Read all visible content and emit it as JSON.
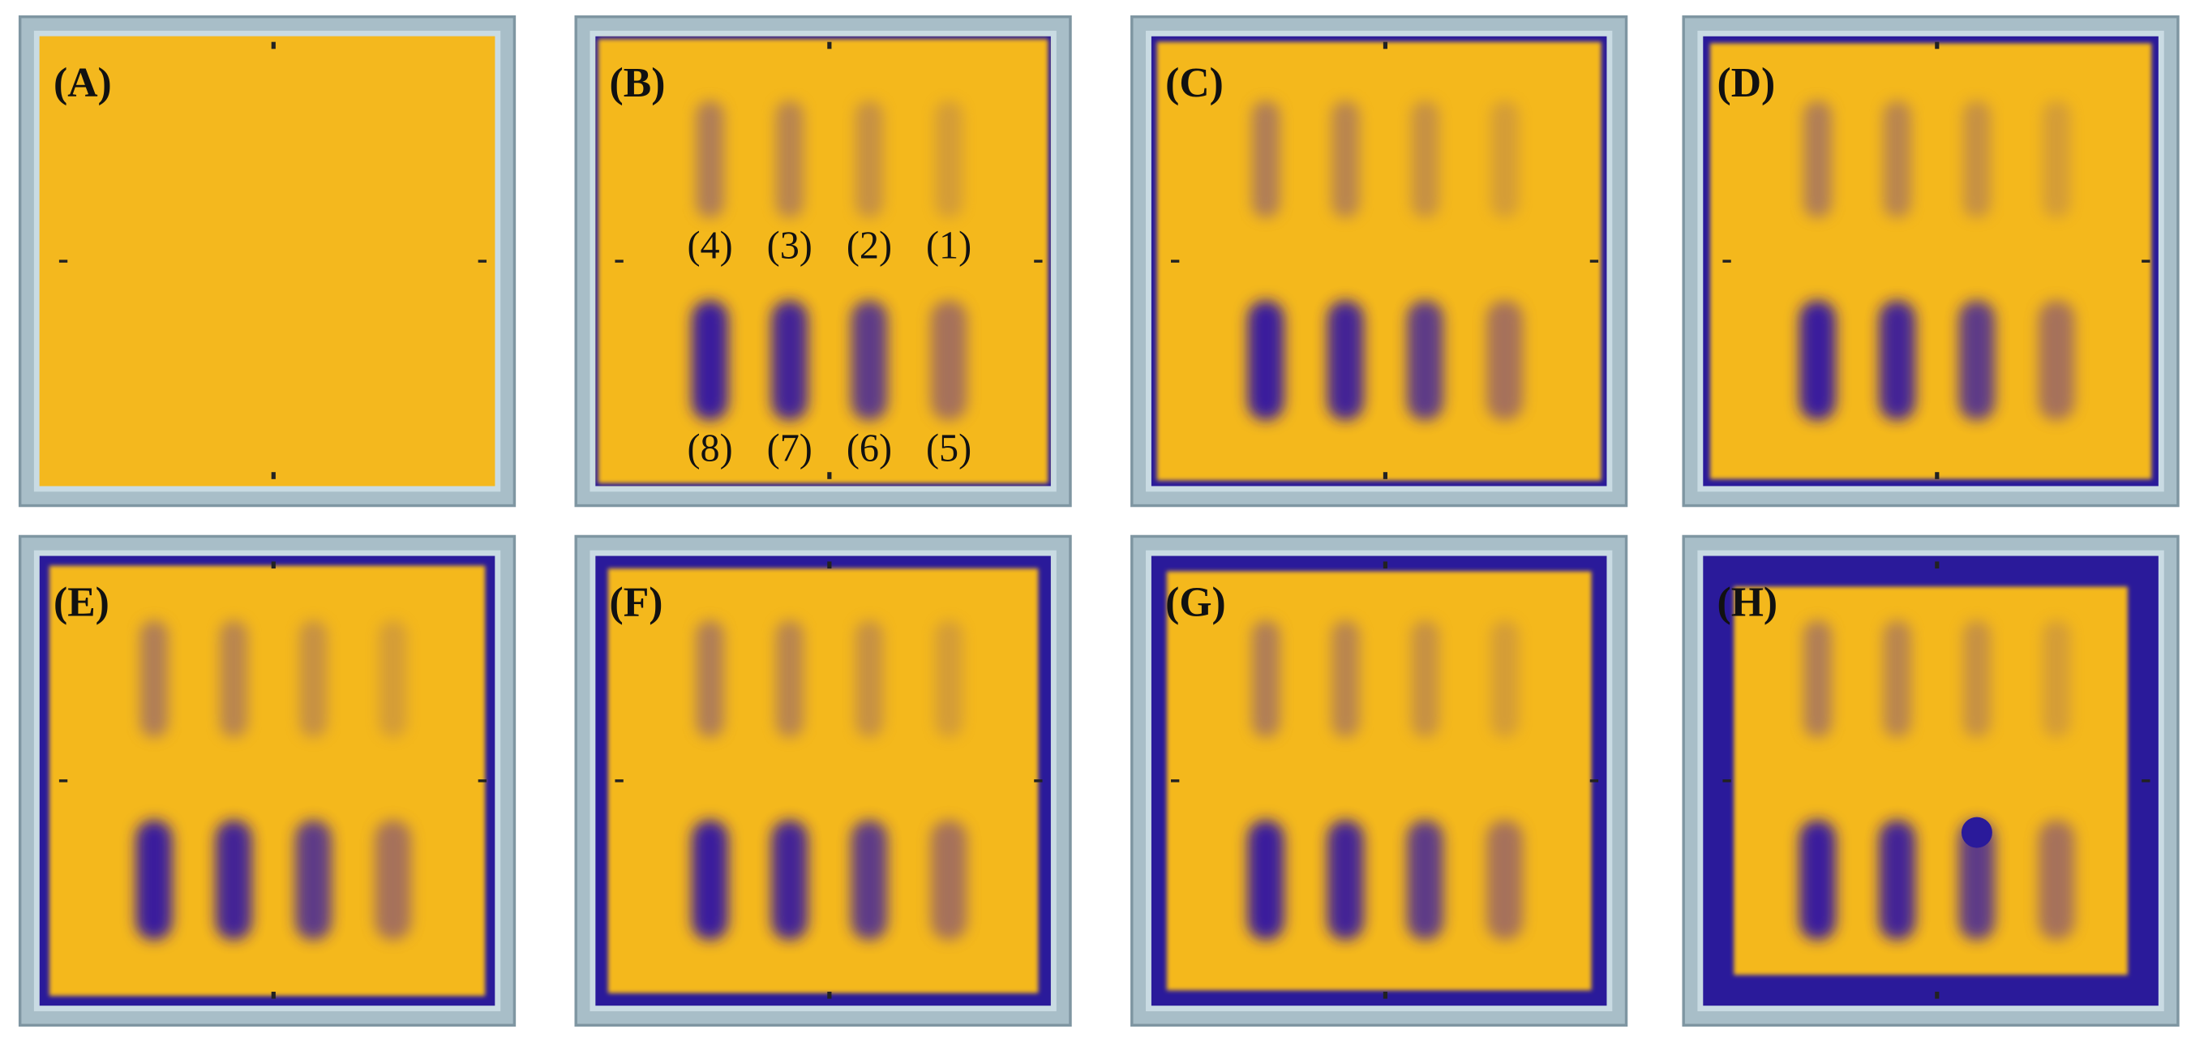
{
  "panels": [
    {
      "label": "(A)"
    },
    {
      "label": "(B)",
      "spot_labels": {
        "top": [
          "(4)",
          "(3)",
          "(2)",
          "(1)"
        ],
        "bottom": [
          "(8)",
          "(7)",
          "(6)",
          "(5)"
        ]
      }
    },
    {
      "label": "(C)"
    },
    {
      "label": "(D)"
    },
    {
      "label": "(E)"
    },
    {
      "label": "(F)"
    },
    {
      "label": "(G)"
    },
    {
      "label": "(H)"
    }
  ]
}
